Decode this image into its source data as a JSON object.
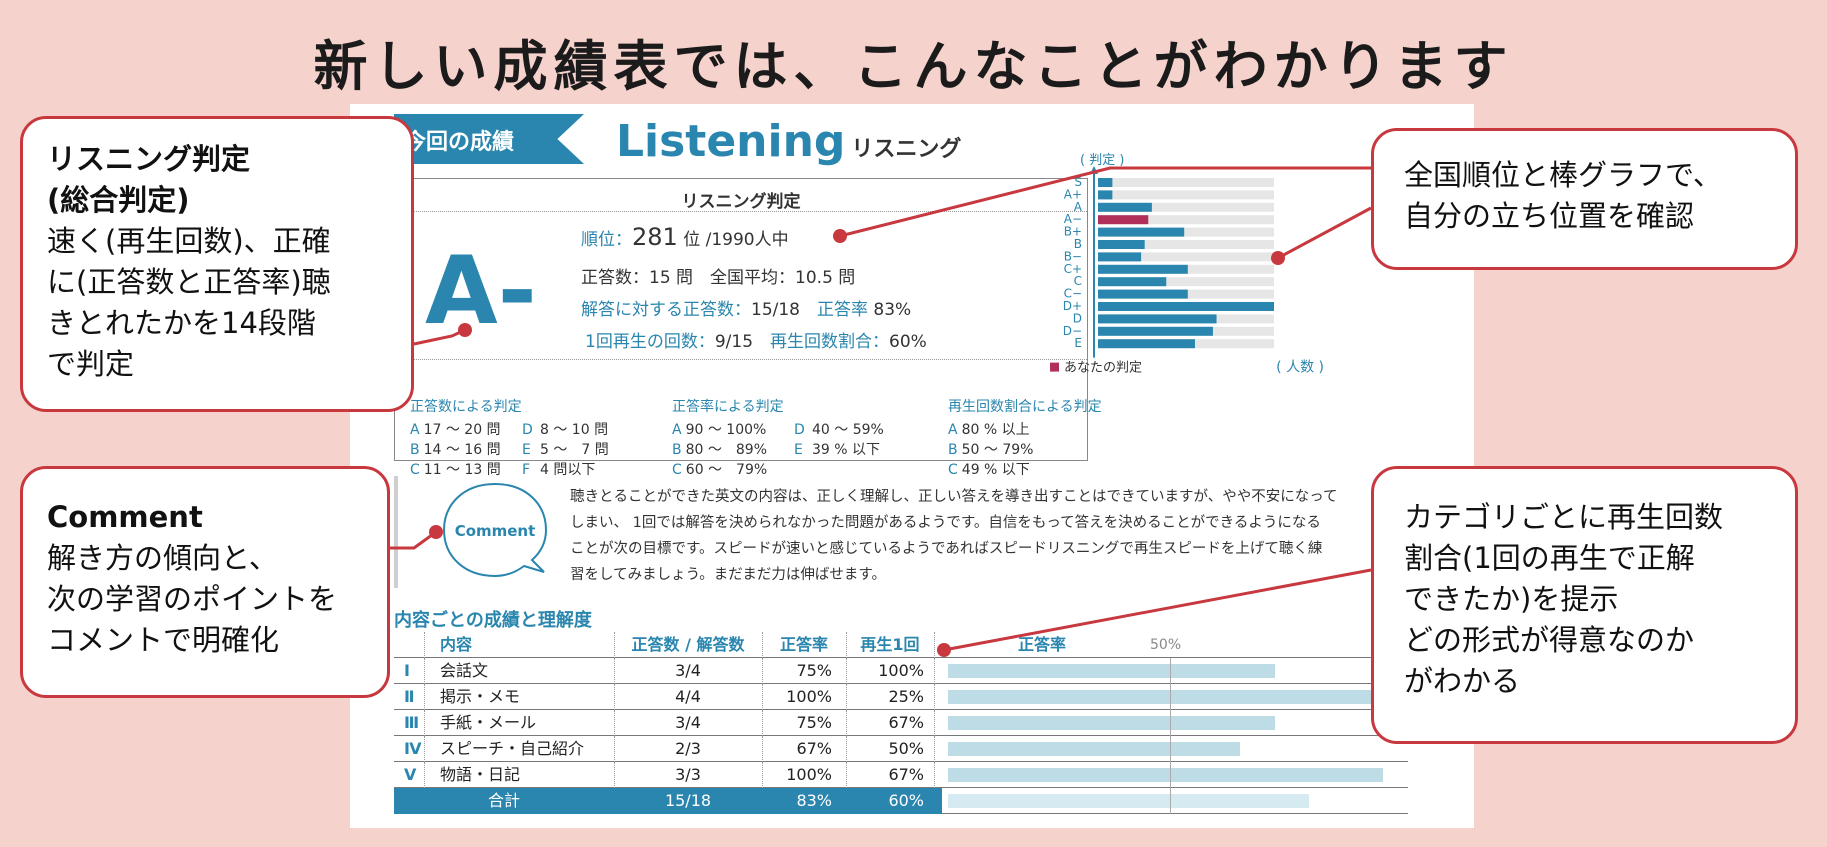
{
  "title": "新しい成績表では、こんなことがわかります",
  "sheet": {
    "ribbon": "今回の成績",
    "heading": "Listening",
    "heading_sub": "リスニング",
    "judge_title": "リスニング判定",
    "grade": "A-",
    "rank_label": "順位：",
    "rank_value": "281",
    "rank_suffix": "位 /1990人中",
    "correct": "正答数：15 問　全国平均：10.5 問",
    "answered_label": "解答に対する正答数：",
    "answered_value": "15/18",
    "rate_label": "正答率",
    "rate_value": "83%",
    "replay_label": "1回再生の回数：",
    "replay_value": "9/15",
    "replay_ratio_label": "再生回数割合：",
    "replay_ratio_value": "60%",
    "rules": [
      {
        "heading": "正答数による判定",
        "rows": [
          {
            "a": "A",
            "av": "17 〜 20 問",
            "b": "D",
            "bv": "8 〜 10 問"
          },
          {
            "a": "B",
            "av": "14 〜 16 問",
            "b": "E",
            "bv": "5 〜　7 問"
          },
          {
            "a": "C",
            "av": "11 〜 13 問",
            "b": "F",
            "bv": "4 問以下"
          }
        ]
      },
      {
        "heading": "正答率による判定",
        "rows": [
          {
            "a": "A",
            "av": "90 〜 100%",
            "b": "D",
            "bv": "40 〜 59%"
          },
          {
            "a": "B",
            "av": "80 〜　89%",
            "b": "E",
            "bv": "39 % 以下"
          },
          {
            "a": "C",
            "av": "60 〜　79%",
            "b": "",
            "bv": ""
          }
        ]
      },
      {
        "heading": "再生回数割合による判定",
        "rows": [
          {
            "a": "A",
            "av": "80 % 以上",
            "b": "",
            "bv": ""
          },
          {
            "a": "B",
            "av": "50 〜 79%",
            "b": "",
            "bv": ""
          },
          {
            "a": "C",
            "av": "49 % 以下",
            "b": "",
            "bv": ""
          }
        ]
      }
    ],
    "comment_label": "Comment",
    "comment_lines": [
      "聴きとることができた英文の内容は、正しく理解し、正しい答えを導き出すことはできていますが、やや不安になって",
      "しまい、 1回では解答を決められなかった問題があるようです。自信をもって答えを決めることができるようになる",
      "ことが次の目標です。スピードが速いと感じているようであればスピードリスニングで再生スピードを上げて聴く練",
      "習をしてみましょう。まだまだ力は伸ばせます。"
    ],
    "content_title": "内容ごとの成績と理解度",
    "table_headers": {
      "content": "内容",
      "ratio": "正答数 / 解答数",
      "rate": "正答率",
      "replay": "再生1回",
      "bar": "正答率",
      "half": "50%"
    },
    "table_rows": [
      {
        "num": "Ⅰ",
        "name": "会話文",
        "ratio": "3/4",
        "rate": "75%",
        "replay": "100%",
        "rate_value": 75
      },
      {
        "num": "Ⅱ",
        "name": "掲示・メモ",
        "ratio": "4/4",
        "rate": "100%",
        "replay": "25%",
        "rate_value": 100
      },
      {
        "num": "Ⅲ",
        "name": "手紙・メール",
        "ratio": "3/4",
        "rate": "75%",
        "replay": "67%",
        "rate_value": 75
      },
      {
        "num": "Ⅳ",
        "name": "スピーチ・自己紹介",
        "ratio": "2/3",
        "rate": "67%",
        "replay": "50%",
        "rate_value": 67
      },
      {
        "num": "Ⅴ",
        "name": "物語・日記",
        "ratio": "3/3",
        "rate": "100%",
        "replay": "67%",
        "rate_value": 100
      }
    ],
    "table_total": {
      "name": "合計",
      "ratio": "15/18",
      "rate": "83%",
      "replay": "60%",
      "rate_value": 83
    }
  },
  "chart_data": {
    "type": "bar",
    "orientation": "horizontal",
    "ylabel": "( 判定 )",
    "xlabel": "( 人数 )",
    "categories": [
      "S",
      "A+",
      "A",
      "A−",
      "B+",
      "B",
      "B−",
      "C+",
      "C",
      "C−",
      "D+",
      "D",
      "D−",
      "E"
    ],
    "values": [
      4,
      4,
      15,
      14,
      24,
      13,
      12,
      25,
      19,
      25,
      49,
      33,
      32,
      27
    ],
    "highlight_category": "A−",
    "legend": "あなたの判定",
    "colors": {
      "bar": "#2a86ae",
      "highlight": "#b0305a",
      "track": "#e6e6e6"
    },
    "xlim": [
      0,
      49
    ]
  },
  "callouts": {
    "judgement": {
      "heading_lines": [
        "リスニング判定",
        "(総合判定)"
      ],
      "body_lines": [
        "速く(再生回数)、正確",
        "に(正答数と正答率)聴",
        "きとれたかを14段階",
        "で判定"
      ]
    },
    "comment": {
      "heading": "Comment",
      "body_lines": [
        "解き方の傾向と、",
        "次の学習のポイントを",
        "コメントで明確化"
      ]
    },
    "ranking": {
      "body_lines": [
        "全国順位と棒グラフで、",
        "自分の立ち位置を確認"
      ]
    },
    "category": {
      "body_lines": [
        "カテゴリごとに再生回数",
        "割合(1回の再生で正解",
        "できたか)を提示",
        "どの形式が得意なのか",
        "がわかる"
      ]
    }
  },
  "colors": {
    "accent": "#2a86ae",
    "callout_border": "#c8383f",
    "background": "#f6d2cc"
  }
}
